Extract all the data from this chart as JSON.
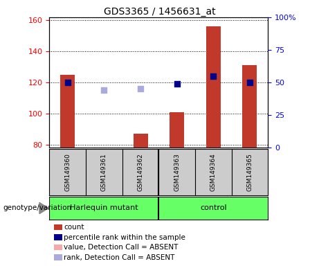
{
  "title": "GDS3365 / 1456631_at",
  "samples": [
    "GSM149360",
    "GSM149361",
    "GSM149362",
    "GSM149363",
    "GSM149364",
    "GSM149365"
  ],
  "ylim_left": [
    78,
    162
  ],
  "ylim_right": [
    0,
    100
  ],
  "yticks_left": [
    80,
    100,
    120,
    140,
    160
  ],
  "yticks_right": [
    0,
    25,
    50,
    75,
    100
  ],
  "yticklabels_right": [
    "0",
    "25",
    "50",
    "75",
    "100%"
  ],
  "bar_values": [
    125,
    null,
    87,
    101,
    156,
    131
  ],
  "bar_absent": [
    false,
    true,
    false,
    false,
    false,
    false
  ],
  "bar_color_present": "#c0392b",
  "bar_color_absent": "#f4a8a8",
  "rank_values_present": [
    120,
    null,
    null,
    119,
    124,
    120
  ],
  "rank_values_absent": [
    null,
    115,
    116,
    null,
    null,
    null
  ],
  "rank_color_present": "#00008b",
  "rank_color_absent": "#aaaadd",
  "legend_items": [
    {
      "label": "count",
      "color": "#c0392b"
    },
    {
      "label": "percentile rank within the sample",
      "color": "#00008b"
    },
    {
      "label": "value, Detection Call = ABSENT",
      "color": "#f4a8a8"
    },
    {
      "label": "rank, Detection Call = ABSENT",
      "color": "#aaaadd"
    }
  ],
  "group1_label": "Harlequin mutant",
  "group2_label": "control",
  "group_color": "#66ff66",
  "genotype_label": "genotype/variation",
  "title_fontsize": 10,
  "tick_fontsize": 8,
  "sample_fontsize": 6.5,
  "legend_fontsize": 7.5,
  "group_fontsize": 8,
  "bar_width": 0.4,
  "rank_marker_size": 40,
  "plot_bg": "white",
  "sample_bg": "#cccccc",
  "grid_color": "black"
}
